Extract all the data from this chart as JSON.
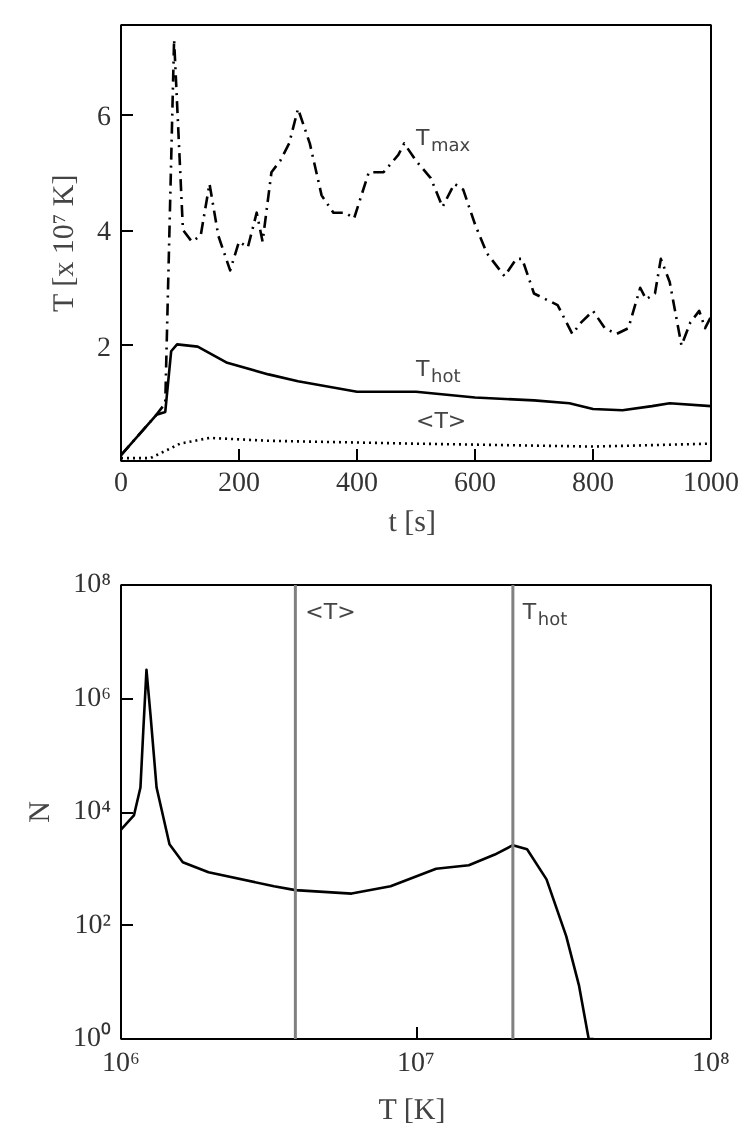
{
  "chart_data": [
    {
      "type": "line",
      "xlabel": "t  [s]",
      "ylabel": "T [x 10⁷ K]",
      "xlim": [
        0,
        1000
      ],
      "ylim": [
        0,
        7.55
      ],
      "xticks": [
        0,
        200,
        400,
        600,
        800,
        1000
      ],
      "yticks": [
        2,
        4,
        6
      ],
      "grid": false,
      "series": [
        {
          "name": "T$_{max}$",
          "color": "#000000",
          "line_style": "dashed",
          "x": [
            0,
            60,
            75,
            90,
            105,
            120,
            135,
            150,
            165,
            185,
            200,
            215,
            230,
            240,
            255,
            270,
            285,
            300,
            320,
            340,
            360,
            380,
            395,
            420,
            445,
            470,
            480,
            500,
            525,
            545,
            565,
            580,
            600,
            620,
            650,
            670,
            680,
            700,
            720,
            740,
            765,
            780,
            800,
            820,
            840,
            860,
            880,
            890,
            905,
            915,
            930,
            950,
            965,
            980,
            990,
            1000
          ],
          "values": [
            0.1,
            0.8,
            1.0,
            7.3,
            4.0,
            3.8,
            3.9,
            4.8,
            3.9,
            3.3,
            3.8,
            3.7,
            4.3,
            3.8,
            5.0,
            5.2,
            5.5,
            6.1,
            5.5,
            4.6,
            4.3,
            4.3,
            4.2,
            5.0,
            5.0,
            5.3,
            5.5,
            5.2,
            4.9,
            4.4,
            4.8,
            4.7,
            4.1,
            3.6,
            3.2,
            3.5,
            3.5,
            2.9,
            2.8,
            2.7,
            2.2,
            2.4,
            2.6,
            2.3,
            2.2,
            2.3,
            3.0,
            2.8,
            2.9,
            3.5,
            3.1,
            2.0,
            2.4,
            2.6,
            2.3,
            2.5
          ]
        },
        {
          "name": "T$_{hot}$",
          "color": "#000000",
          "line_style": "solid",
          "x": [
            0,
            60,
            75,
            85,
            95,
            130,
            180,
            250,
            300,
            400,
            500,
            600,
            700,
            760,
            800,
            850,
            900,
            930,
            1000
          ],
          "values": [
            0.1,
            0.8,
            0.85,
            1.9,
            2.02,
            1.98,
            1.7,
            1.5,
            1.38,
            1.2,
            1.2,
            1.1,
            1.05,
            1.0,
            0.9,
            0.88,
            0.95,
            1.0,
            0.95
          ]
        },
        {
          "name": "<T>",
          "color": "#000000",
          "line_style": "dotted",
          "x": [
            0,
            50,
            100,
            150,
            250,
            500,
            800,
            1000
          ],
          "values": [
            0.05,
            0.05,
            0.3,
            0.4,
            0.35,
            0.3,
            0.25,
            0.3
          ]
        }
      ]
    },
    {
      "type": "line",
      "xlabel": "T  [K]",
      "ylabel": "N",
      "log": "xy",
      "xlim": [
        1000000,
        100000000
      ],
      "ylim": [
        1,
        100000000
      ],
      "xticks": [
        {
          "value": 1000000,
          "label": "10⁶"
        },
        {
          "value": 10000000,
          "label": "10⁷"
        },
        {
          "value": 100000000,
          "label": "10⁸"
        }
      ],
      "yticks": [
        {
          "value": 1,
          "label": "10⁰"
        },
        {
          "value": 100,
          "label": "10²"
        },
        {
          "value": 10000,
          "label": "10⁴"
        },
        {
          "value": 1000000,
          "label": "10⁶"
        },
        {
          "value": 100000000,
          "label": "10⁸"
        }
      ],
      "grid": false,
      "series": [
        {
          "color": "#000000",
          "line_style": "solid",
          "x": [
            1000000,
            1106000,
            1164000,
            1190000,
            1220000,
            1260000,
            1320000,
            1460000,
            1620000,
            1980000,
            3300000,
            3900000,
            6050000,
            8200000,
            11700000,
            15100000,
            18500000,
            21300000,
            23800000,
            27700000,
            32300000,
            35700000,
            38500000,
            40000000
          ],
          "values": [
            4900,
            8700,
            27000,
            270000,
            3200000,
            490000,
            27000,
            2700,
            1300,
            870,
            490,
            420,
            365,
            490,
            1000,
            1150,
            1780,
            2600,
            2200,
            650,
            65,
            8.7,
            1,
            1
          ]
        }
      ],
      "ref_lines": [
        {
          "axis": "x",
          "value": 3900000,
          "label": "<T>",
          "color": "#808080"
        },
        {
          "axis": "x",
          "value": 21300000,
          "label": "T$_{hot}$",
          "color": "#808080"
        }
      ]
    }
  ]
}
